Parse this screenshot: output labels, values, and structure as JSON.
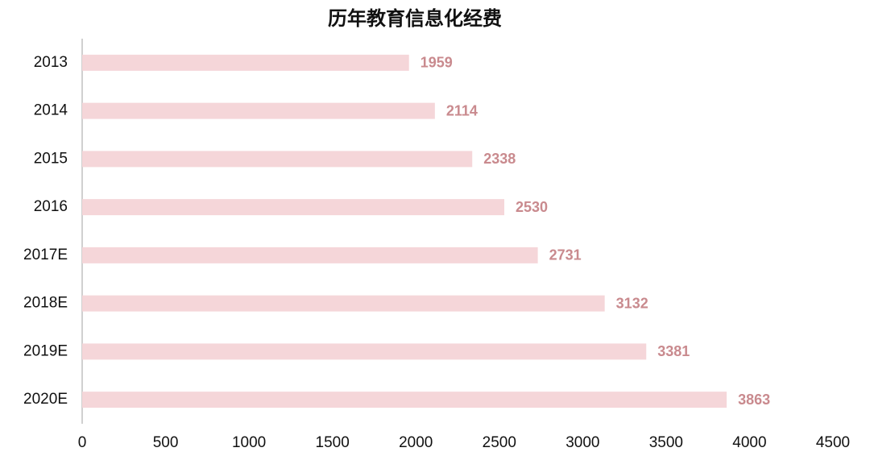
{
  "chart_data": {
    "type": "bar",
    "orientation": "horizontal",
    "title": "历年教育信息化经费",
    "categories": [
      "2013",
      "2014",
      "2015",
      "2016",
      "2017E",
      "2018E",
      "2019E",
      "2020E"
    ],
    "values": [
      1959,
      2114,
      2338,
      2530,
      2731,
      3132,
      3381,
      3863
    ],
    "color": "#f5d6d9",
    "label_color": "#c98a8e",
    "xlim": [
      0,
      4500
    ],
    "xticks": [
      0,
      500,
      1000,
      1500,
      2000,
      2500,
      3000,
      3500,
      4000,
      4500
    ],
    "grid": false
  }
}
